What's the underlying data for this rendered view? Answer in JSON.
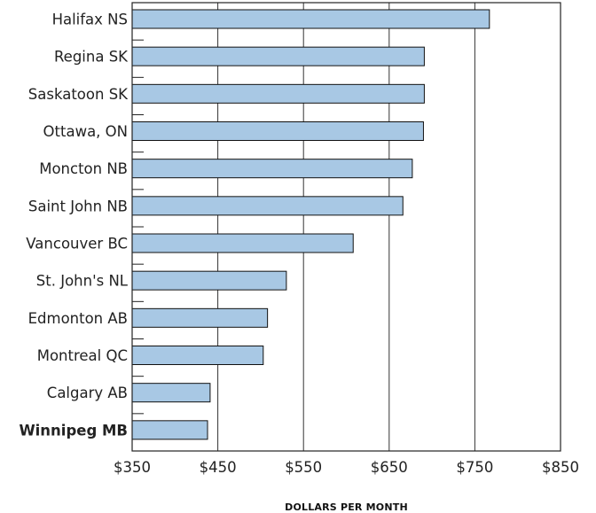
{
  "chart_data": {
    "type": "bar",
    "orientation": "horizontal",
    "categories": [
      "Halifax NS",
      "Regina SK",
      "Saskatoon SK",
      "Ottawa, ON",
      "Moncton NB",
      "Saint John NB",
      "Vancouver BC",
      "St. John's NL",
      "Edmonton AB",
      "Montreal QC",
      "Calgary AB",
      "Winnipeg MB"
    ],
    "highlight_category": "Winnipeg MB",
    "values": [
      767,
      691,
      691,
      690,
      677,
      666,
      608,
      530,
      508,
      503,
      441,
      438
    ],
    "xlim": [
      350,
      850
    ],
    "x_ticks": [
      350,
      450,
      550,
      650,
      750,
      850
    ],
    "x_tick_labels": [
      "$350",
      "$450",
      "$550",
      "$650",
      "$750",
      "$850"
    ],
    "xlabel": "DOLLARS PER MONTH",
    "ylabel": "",
    "title": "",
    "grid": "vertical",
    "colors": {
      "bar": "#a8c8e4",
      "bar_stroke": "#111111",
      "grid": "#333333"
    }
  }
}
